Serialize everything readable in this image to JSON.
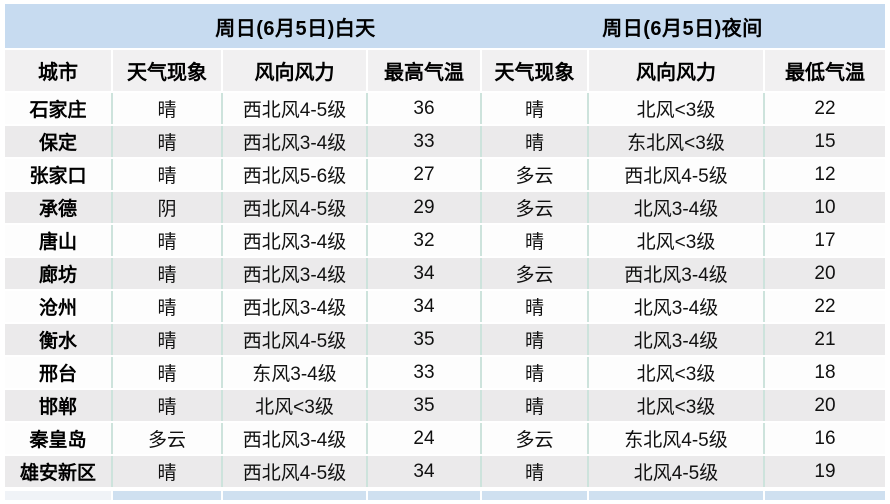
{
  "header": {
    "day_title": "周日(6月5日)白天",
    "night_title": "周日(6月5日)夜间"
  },
  "columns": {
    "city": "城市",
    "day_weather": "天气现象",
    "day_wind": "风向风力",
    "day_high": "最高气温",
    "night_weather": "天气现象",
    "night_wind": "风向风力",
    "night_low": "最低气温"
  },
  "rows": [
    {
      "city": "石家庄",
      "day_weather": "晴",
      "day_wind": "西北风4-5级",
      "day_high": "36",
      "night_weather": "晴",
      "night_wind": "北风<3级",
      "night_low": "22"
    },
    {
      "city": "保定",
      "day_weather": "晴",
      "day_wind": "西北风3-4级",
      "day_high": "33",
      "night_weather": "晴",
      "night_wind": "东北风<3级",
      "night_low": "15"
    },
    {
      "city": "张家口",
      "day_weather": "晴",
      "day_wind": "西北风5-6级",
      "day_high": "27",
      "night_weather": "多云",
      "night_wind": "西北风4-5级",
      "night_low": "12"
    },
    {
      "city": "承德",
      "day_weather": "阴",
      "day_wind": "西北风4-5级",
      "day_high": "29",
      "night_weather": "多云",
      "night_wind": "北风3-4级",
      "night_low": "10"
    },
    {
      "city": "唐山",
      "day_weather": "晴",
      "day_wind": "西北风3-4级",
      "day_high": "32",
      "night_weather": "晴",
      "night_wind": "北风<3级",
      "night_low": "17"
    },
    {
      "city": "廊坊",
      "day_weather": "晴",
      "day_wind": "西北风3-4级",
      "day_high": "34",
      "night_weather": "多云",
      "night_wind": "西北风3-4级",
      "night_low": "20"
    },
    {
      "city": "沧州",
      "day_weather": "晴",
      "day_wind": "西北风3-4级",
      "day_high": "34",
      "night_weather": "晴",
      "night_wind": "北风3-4级",
      "night_low": "22"
    },
    {
      "city": "衡水",
      "day_weather": "晴",
      "day_wind": "西北风4-5级",
      "day_high": "35",
      "night_weather": "晴",
      "night_wind": "北风3-4级",
      "night_low": "21"
    },
    {
      "city": "邢台",
      "day_weather": "晴",
      "day_wind": "东风3-4级",
      "day_high": "33",
      "night_weather": "晴",
      "night_wind": "北风<3级",
      "night_low": "18"
    },
    {
      "city": "邯郸",
      "day_weather": "晴",
      "day_wind": "北风<3级",
      "day_high": "35",
      "night_weather": "晴",
      "night_wind": "北风<3级",
      "night_low": "20"
    },
    {
      "city": "秦皇岛",
      "day_weather": "多云",
      "day_wind": "西北风3-4级",
      "day_high": "24",
      "night_weather": "多云",
      "night_wind": "东北风4-5级",
      "night_low": "16"
    },
    {
      "city": "雄安新区",
      "day_weather": "晴",
      "day_wind": "西北风4-5级",
      "day_high": "34",
      "night_weather": "晴",
      "night_wind": "北风4-5级",
      "night_low": "19"
    }
  ],
  "colors": {
    "band_blue": "#c7dbf0",
    "header_bg": "#f1f0f1",
    "row_white": "#fdfdfd",
    "row_alt": "#ebeaeb",
    "cell_border": "#cde3dc",
    "strip_blue": "#cfe0f0"
  }
}
